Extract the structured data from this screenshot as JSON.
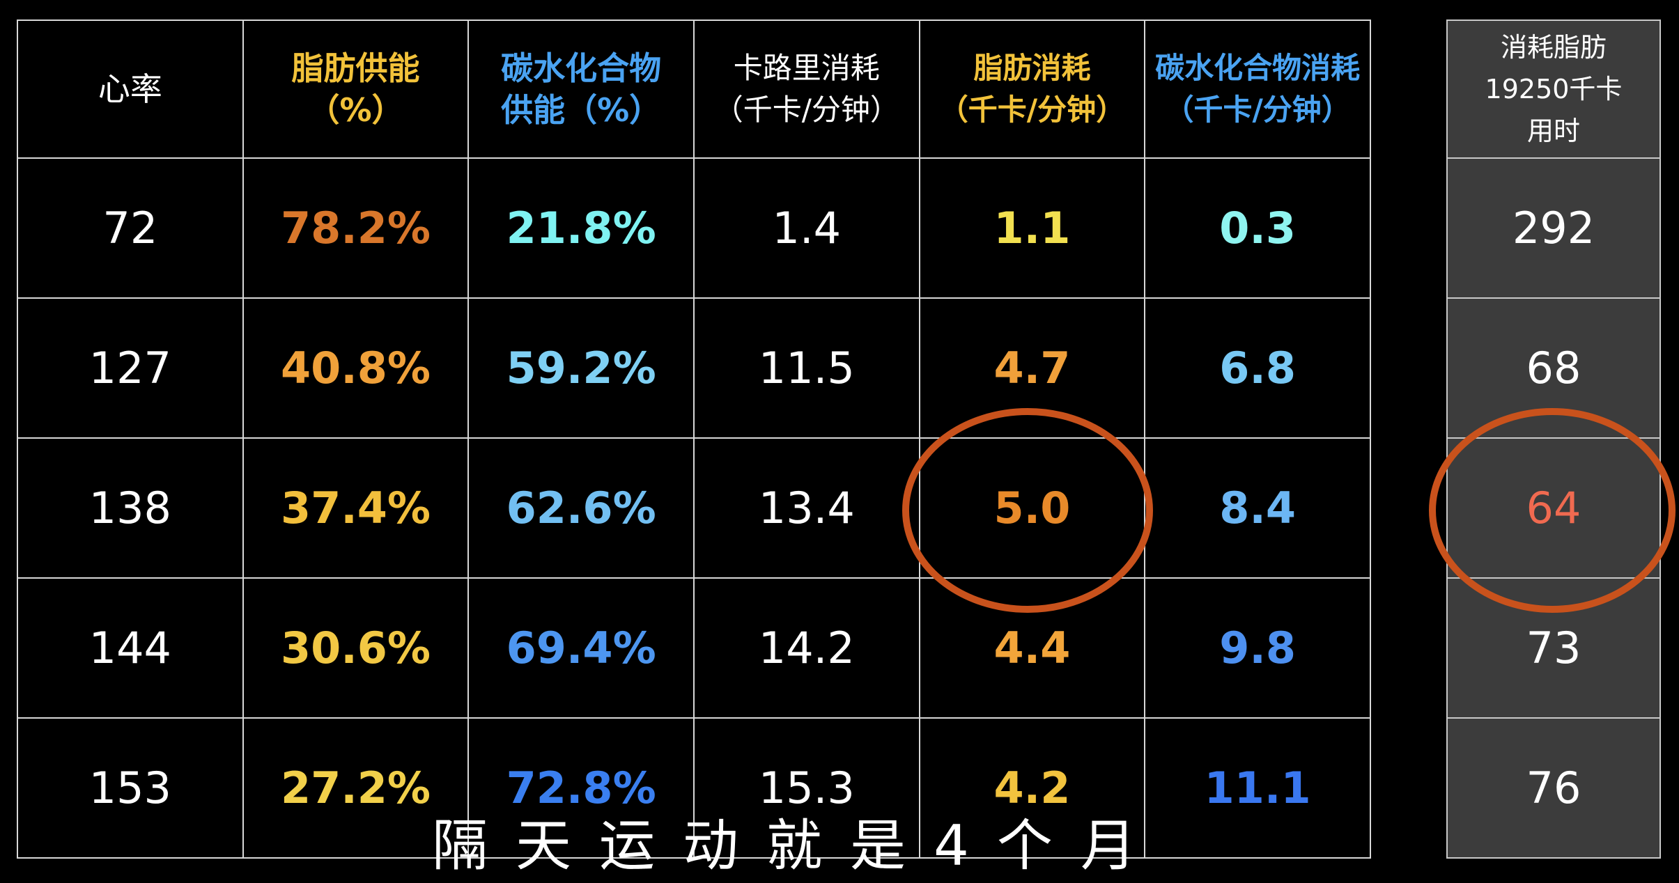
{
  "chart_data": {
    "type": "table",
    "columns": [
      "心率",
      "脂肪供能（%）",
      "碳水化合物供能（%）",
      "卡路里消耗（千卡/分钟）",
      "脂肪消耗（千卡/分钟）",
      "碳水化合物消耗（千卡/分钟）",
      "消耗脂肪19250千卡用时"
    ],
    "header": {
      "heart_rate": "心率",
      "fat_pct_1": "脂肪供能",
      "fat_pct_2": "（%）",
      "carb_pct_1": "碳水化合物",
      "carb_pct_2": "供能（%）",
      "kcal_1": "卡路里消耗",
      "kcal_2": "（千卡/分钟）",
      "fat_burn_1": "脂肪消耗",
      "fat_burn_2": "（千卡/分钟）",
      "carb_burn_1": "碳水化合物消耗",
      "carb_burn_2": "（千卡/分钟）",
      "time_1": "消耗脂肪",
      "time_2": "19250千卡",
      "time_3": "用时"
    },
    "rows": [
      {
        "heart_rate": "72",
        "fat_pct": "78.2%",
        "carb_pct": "21.8%",
        "kcal": "1.4",
        "fat_burn": "1.1",
        "carb_burn": "0.3",
        "time": "292"
      },
      {
        "heart_rate": "127",
        "fat_pct": "40.8%",
        "carb_pct": "59.2%",
        "kcal": "11.5",
        "fat_burn": "4.7",
        "carb_burn": "6.8",
        "time": "68"
      },
      {
        "heart_rate": "138",
        "fat_pct": "37.4%",
        "carb_pct": "62.6%",
        "kcal": "13.4",
        "fat_burn": "5.0",
        "carb_burn": "8.4",
        "time": "64"
      },
      {
        "heart_rate": "144",
        "fat_pct": "30.6%",
        "carb_pct": "69.4%",
        "kcal": "14.2",
        "fat_burn": "4.4",
        "carb_burn": "9.8",
        "time": "73"
      },
      {
        "heart_rate": "153",
        "fat_pct": "27.2%",
        "carb_pct": "72.8%",
        "kcal": "15.3",
        "fat_burn": "4.2",
        "carb_burn": "11.1",
        "time": "76"
      }
    ],
    "highlighted": {
      "fat_burn_row": 2,
      "time_row": 2
    }
  },
  "subtitle": "隔天运动就是4个月",
  "colors": {
    "background": "#000000",
    "grid": "#d8d8d8",
    "header_fat": "#f2c23a",
    "header_carb": "#4aa3f2",
    "fat_pct": [
      "#d9772b",
      "#f0a13a",
      "#f2bf3c",
      "#f2c844",
      "#f2d04a"
    ],
    "carb_pct": [
      "#7ff2f2",
      "#7fd0f4",
      "#72bff2",
      "#4d96f0",
      "#3a7ff0"
    ],
    "fat_burn": [
      "#f2e050",
      "#f0a03a",
      "#e88a2a",
      "#f2a53a",
      "#f2c33e"
    ],
    "carb_burn": [
      "#8ff4f0",
      "#78c8f4",
      "#6cb6f4",
      "#4d90f0",
      "#3a78f0"
    ],
    "time_highlight": "#f06a50",
    "ring": "#c9521c",
    "side_bg": "#3c3c3c"
  }
}
